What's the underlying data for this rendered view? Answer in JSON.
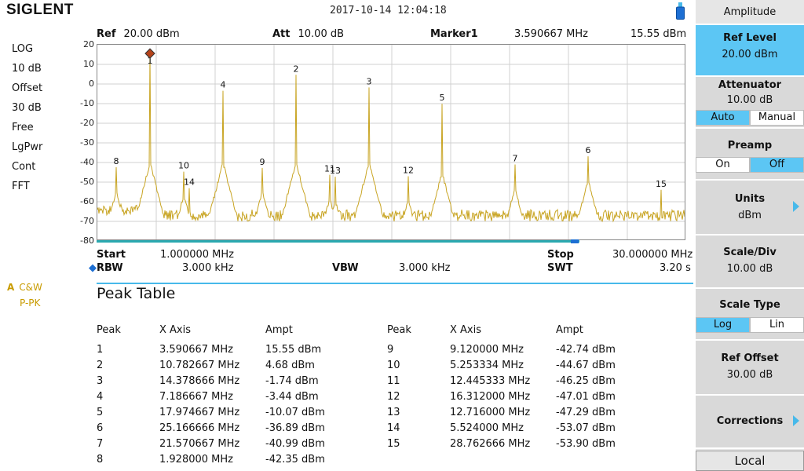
{
  "header": {
    "logo": "SIGLENT",
    "datetime": "2017-10-14   12:04:18"
  },
  "left_status": [
    "LOG",
    "10 dB",
    "Offset",
    "30 dB",
    "Free",
    "LgPwr",
    "Cont",
    "FFT"
  ],
  "trace_indicator": {
    "letter": "A",
    "line1": "C&W",
    "line2": "P-PK"
  },
  "graph_header": {
    "ref_label": "Ref",
    "ref_value": "20.00 dBm",
    "att_label": "Att",
    "att_value": "10.00 dB",
    "marker_label": "Marker1",
    "marker_freq": "3.590667 MHz",
    "marker_ampl": "15.55 dBm"
  },
  "y_ticks": [
    "20",
    "10",
    "0",
    "-10",
    "-20",
    "-30",
    "-40",
    "-50",
    "-60",
    "-70",
    "-80"
  ],
  "graph_footer": {
    "start_label": "Start",
    "start_value": "1.000000 MHz",
    "stop_label": "Stop",
    "stop_value": "30.000000 MHz",
    "rbw_label": "RBW",
    "rbw_value": "3.000 kHz",
    "vbw_label": "VBW",
    "vbw_value": "3.000 kHz",
    "swt_label": "SWT",
    "swt_value": "3.20 s"
  },
  "chart_data": {
    "type": "line",
    "x_range_mhz": [
      1.0,
      30.0
    ],
    "ylim": [
      -80,
      20
    ],
    "grid": true,
    "noise_floor_dbm": -67,
    "peaks": [
      {
        "id": "1",
        "freq": 3.590667,
        "ampl": 15.55
      },
      {
        "id": "2",
        "freq": 10.782667,
        "ampl": 4.68
      },
      {
        "id": "3",
        "freq": 14.378666,
        "ampl": -1.74
      },
      {
        "id": "4",
        "freq": 7.186667,
        "ampl": -3.44
      },
      {
        "id": "5",
        "freq": 17.974667,
        "ampl": -10.07
      },
      {
        "id": "6",
        "freq": 25.166666,
        "ampl": -36.89
      },
      {
        "id": "7",
        "freq": 21.570667,
        "ampl": -40.99
      },
      {
        "id": "8",
        "freq": 1.928,
        "ampl": -42.35
      },
      {
        "id": "9",
        "freq": 9.12,
        "ampl": -42.74
      },
      {
        "id": "10",
        "freq": 5.253334,
        "ampl": -44.67
      },
      {
        "id": "11",
        "freq": 12.445333,
        "ampl": -46.25
      },
      {
        "id": "12",
        "freq": 16.312,
        "ampl": -47.01
      },
      {
        "id": "13",
        "freq": 12.716,
        "ampl": -47.29
      },
      {
        "id": "14",
        "freq": 5.524,
        "ampl": -53.07
      },
      {
        "id": "15",
        "freq": 28.762666,
        "ampl": -53.9
      }
    ],
    "trace_color": "#c8a422"
  },
  "peak_table": {
    "title": "Peak Table",
    "headers": [
      "Peak",
      "X Axis",
      "Ampt"
    ],
    "rows_left": [
      [
        "1",
        "3.590667 MHz",
        "15.55 dBm"
      ],
      [
        "2",
        "10.782667 MHz",
        "4.68 dBm"
      ],
      [
        "3",
        "14.378666 MHz",
        "-1.74 dBm"
      ],
      [
        "4",
        "7.186667 MHz",
        "-3.44 dBm"
      ],
      [
        "5",
        "17.974667 MHz",
        "-10.07 dBm"
      ],
      [
        "6",
        "25.166666 MHz",
        "-36.89 dBm"
      ],
      [
        "7",
        "21.570667 MHz",
        "-40.99 dBm"
      ],
      [
        "8",
        "1.928000 MHz",
        "-42.35 dBm"
      ]
    ],
    "rows_right": [
      [
        "9",
        "9.120000 MHz",
        "-42.74 dBm"
      ],
      [
        "10",
        "5.253334 MHz",
        "-44.67 dBm"
      ],
      [
        "11",
        "12.445333 MHz",
        "-46.25 dBm"
      ],
      [
        "12",
        "16.312000 MHz",
        "-47.01 dBm"
      ],
      [
        "13",
        "12.716000 MHz",
        "-47.29 dBm"
      ],
      [
        "14",
        "5.524000 MHz",
        "-53.07 dBm"
      ],
      [
        "15",
        "28.762666 MHz",
        "-53.90 dBm"
      ]
    ]
  },
  "menu": {
    "title": "Amplitude",
    "ref_level": {
      "label": "Ref Level",
      "value": "20.00 dBm"
    },
    "attenuator": {
      "label": "Attenuator",
      "value": "10.00 dB",
      "opt_a": "Auto",
      "opt_b": "Manual"
    },
    "preamp": {
      "label": "Preamp",
      "opt_a": "On",
      "opt_b": "Off"
    },
    "units": {
      "label": "Units",
      "value": "dBm"
    },
    "scale_div": {
      "label": "Scale/Div",
      "value": "10.00 dB"
    },
    "scale_type": {
      "label": "Scale Type",
      "opt_a": "Log",
      "opt_b": "Lin"
    },
    "ref_offset": {
      "label": "Ref Offset",
      "value": "30.00 dB"
    },
    "corrections": {
      "label": "Corrections"
    },
    "local": "Local"
  }
}
